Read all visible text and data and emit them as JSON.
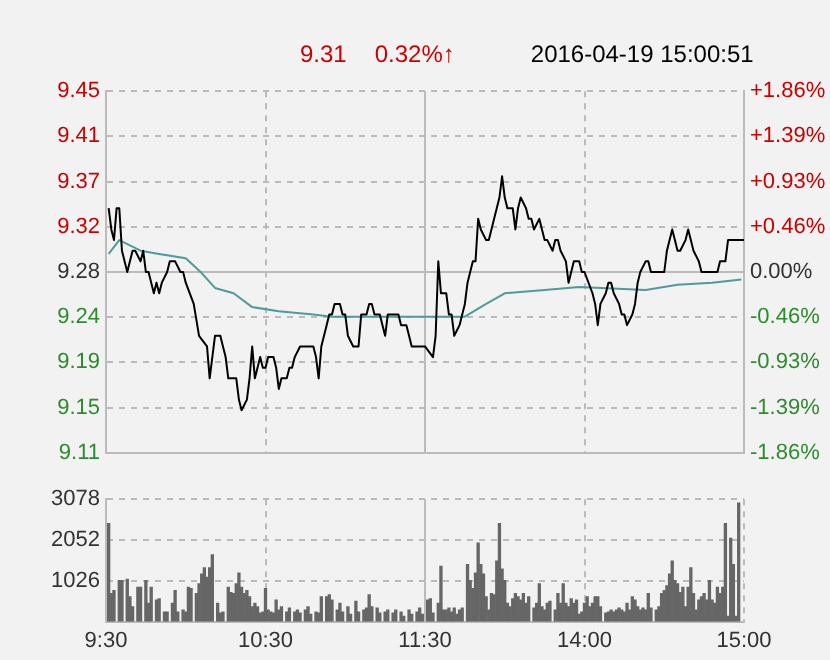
{
  "chart_data": [
    {
      "type": "line",
      "annotations": [
        "9.31",
        "0.32%↑",
        "2016-04-19 15:00:51"
      ],
      "categories": [
        null,
        null,
        null,
        null,
        null,
        null,
        null,
        null,
        null,
        null,
        null,
        null,
        null,
        null,
        null,
        null,
        null,
        null,
        null,
        null,
        null,
        null,
        null,
        null,
        null,
        null,
        null,
        null,
        null,
        null,
        null,
        null,
        null,
        null,
        null,
        null,
        null,
        null,
        null,
        null,
        null,
        null,
        null,
        null,
        null,
        null,
        null,
        null,
        null,
        null,
        null,
        null,
        null,
        null,
        null,
        null,
        null,
        null,
        null,
        null,
        null,
        null,
        null,
        null,
        null,
        null,
        null,
        null,
        null,
        null,
        null,
        null,
        null,
        null,
        null,
        null,
        null,
        null,
        null,
        null,
        null,
        null,
        null,
        null,
        null,
        null,
        null,
        null,
        null,
        null,
        null,
        null,
        null,
        null,
        null,
        null,
        null,
        null,
        null,
        null,
        null,
        null,
        null,
        null,
        null,
        null,
        null,
        null,
        null,
        null,
        null,
        null,
        null,
        null,
        null,
        null,
        null,
        null,
        null,
        null,
        null,
        null,
        null,
        null,
        null,
        null,
        null,
        null,
        null,
        null,
        null,
        null,
        null,
        null,
        null,
        null,
        null,
        null,
        null,
        null,
        null,
        null,
        null,
        null,
        null,
        null,
        null,
        null,
        null,
        null,
        null,
        null,
        null,
        null,
        null,
        null,
        null,
        null,
        null,
        null,
        null,
        null,
        null,
        null,
        null,
        null,
        null,
        null,
        null,
        null,
        null,
        null,
        null,
        null,
        null,
        null,
        null,
        null,
        null,
        null,
        null,
        null,
        null,
        null,
        null,
        null,
        null,
        null,
        null,
        null,
        null,
        null,
        null,
        null,
        null,
        null,
        null,
        null,
        null,
        null,
        null,
        null,
        null,
        null,
        null,
        null,
        null,
        null,
        null,
        null,
        null,
        null,
        null,
        null,
        null,
        null,
        null,
        null,
        null,
        null,
        null,
        null,
        null,
        null,
        null,
        null,
        null,
        null,
        null,
        null,
        null,
        null,
        null,
        null,
        null,
        null,
        null,
        null,
        null,
        null,
        null
      ],
      "ylim": [
        9.11,
        9.45
      ],
      "yticks": [
        {
          "value": 9.11,
          "label": "9.11"
        },
        {
          "value": 9.1525,
          "label": "9.15"
        },
        {
          "value": 9.195,
          "label": "9.19"
        },
        {
          "value": 9.2375,
          "label": "9.24"
        },
        {
          "value": 9.28,
          "label": "9.28"
        },
        {
          "value": 9.3225,
          "label": "9.32"
        },
        {
          "value": 9.365,
          "label": "9.37"
        },
        {
          "value": 9.4075,
          "label": "9.41"
        },
        {
          "value": 9.45,
          "label": "9.45"
        }
      ],
      "y2lim": [
        -1.86,
        1.86
      ],
      "y2ticks": [
        {
          "value": -1.86,
          "label": "-1.86%"
        },
        {
          "value": -1.395,
          "label": "-1.39%"
        },
        {
          "value": -0.93,
          "label": "-0.93%"
        },
        {
          "value": -0.465,
          "label": "-0.46%"
        },
        {
          "value": 0,
          "label": "0.00%"
        },
        {
          "value": 0.465,
          "label": "+0.46%"
        },
        {
          "value": 0.93,
          "label": "+0.93%"
        },
        {
          "value": 1.395,
          "label": "+1.39%"
        },
        {
          "value": 1.86,
          "label": "+1.86%"
        }
      ],
      "tick_labels": "y",
      "grid": true,
      "legend": false,
      "marker": "none",
      "series": [
        {
          "color": "#000000",
          "values": [
            null,
            9.34,
            9.32,
            9.31,
            9.34,
            9.34,
            9.3,
            null,
            9.28,
            9.29,
            9.3,
            9.3,
            null,
            9.29,
            9.3,
            9.28,
            9.28,
            null,
            9.26,
            9.27,
            9.26,
            9.27,
            null,
            9.28,
            9.29,
            9.29,
            9.29,
            null,
            9.28,
            9.28,
            9.27,
            null,
            null,
            9.25,
            null,
            9.22,
            null,
            null,
            9.21,
            9.18,
            9.2,
            9.22,
            null,
            9.22,
            9.21,
            9.2,
            9.18,
            null,
            9.18,
            9.18,
            9.16,
            9.15,
            null,
            9.16,
            9.18,
            9.21,
            9.18,
            9.19,
            9.2,
            9.19,
            9.19,
            9.2,
            null,
            9.2,
            9.19,
            9.17,
            9.18,
            null,
            9.18,
            9.19,
            9.19,
            9.2,
            null,
            9.21,
            9.21,
            9.21,
            9.21,
            null,
            9.21,
            9.2,
            9.18,
            9.21,
            null,
            9.23,
            9.24,
            9.24,
            9.25,
            null,
            9.25,
            9.24,
            9.24,
            9.22,
            null,
            9.21,
            9.21,
            9.21,
            9.24,
            null,
            9.24,
            9.25,
            9.25,
            9.24,
            null,
            9.24,
            9.23,
            9.22,
            9.24,
            null,
            9.24,
            9.24,
            9.24,
            9.23,
            null,
            9.23,
            9.22,
            9.21,
            9.21,
            null,
            9.21,
            null,
            9.21,
            null,
            null,
            9.2,
            9.22,
            9.29,
            9.26,
            null,
            9.26,
            9.24,
            9.24,
            9.22,
            null,
            9.23,
            9.24,
            9.25,
            9.27,
            null,
            9.29,
            9.29,
            9.33,
            9.32,
            null,
            9.31,
            9.31,
            9.32,
            9.33,
            null,
            9.35,
            9.37,
            9.35,
            9.34,
            null,
            9.34,
            9.32,
            9.34,
            9.35,
            null,
            9.34,
            9.33,
            9.33,
            9.32,
            null,
            9.33,
            9.32,
            9.31,
            9.31,
            null,
            9.3,
            9.31,
            9.31,
            9.3,
            null,
            9.29,
            9.27,
            9.28,
            9.29,
            null,
            9.29,
            9.28,
            9.28,
            null,
            null,
            9.26,
            9.25,
            9.23,
            9.25,
            null,
            9.26,
            9.27,
            9.27,
            9.26,
            null,
            9.25,
            9.24,
            9.24,
            9.23,
            null,
            9.24,
            9.25,
            9.27,
            9.28,
            null,
            9.29,
            9.29,
            9.28,
            null,
            null,
            null,
            null,
            9.28,
            9.3,
            null,
            9.32,
            9.31,
            9.3,
            9.3,
            null,
            9.31,
            9.32,
            9.31,
            9.3,
            null,
            9.29,
            9.28,
            null,
            null,
            null,
            null,
            null,
            9.28,
            9.29,
            null,
            9.29,
            9.31,
            null,
            null,
            null,
            9.31,
            null,
            9.31
          ]
        },
        {
          "color": "#4f9a9a",
          "values": [
            null,
            9.297,
            null,
            null,
            null,
            9.31,
            null,
            null,
            null,
            null,
            null,
            null,
            null,
            9.3,
            null,
            null,
            null,
            null,
            null,
            null,
            9.297,
            null,
            null,
            null,
            null,
            null,
            null,
            null,
            null,
            null,
            9.293,
            null,
            null,
            null,
            null,
            null,
            9.279,
            null,
            null,
            null,
            null,
            9.265,
            null,
            null,
            null,
            null,
            null,
            null,
            9.26,
            null,
            null,
            null,
            null,
            null,
            null,
            9.247,
            null,
            null,
            null,
            null,
            null,
            null,
            null,
            null,
            null,
            9.243,
            null,
            null,
            null,
            null,
            null,
            null,
            null,
            null,
            null,
            null,
            null,
            null,
            9.24,
            null,
            null,
            null,
            null,
            null,
            null,
            9.238,
            null,
            null,
            null,
            null,
            null,
            null,
            null,
            null,
            null,
            null,
            null,
            null,
            null,
            null,
            null,
            null,
            null,
            null,
            null,
            null,
            null,
            null,
            null,
            null,
            null,
            null,
            null,
            null,
            null,
            null,
            null,
            null,
            9.238,
            null,
            null,
            null,
            null,
            null,
            null,
            null,
            null,
            null,
            null,
            null,
            null,
            null,
            null,
            null,
            null,
            9.238,
            null,
            null,
            null,
            null,
            null,
            null,
            null,
            9.25,
            null,
            null,
            null,
            null,
            null,
            null,
            9.26,
            null,
            null,
            null,
            null,
            null,
            null,
            null,
            null,
            null,
            null,
            null,
            null,
            null,
            null,
            9.263,
            null,
            null,
            null,
            null,
            null,
            null,
            null,
            null,
            null,
            null,
            null,
            null,
            9.266,
            null,
            null,
            null,
            null,
            null,
            null,
            null,
            null,
            null,
            null,
            null,
            null,
            null,
            null,
            null,
            null,
            null,
            null,
            null,
            null,
            null,
            null,
            null,
            null,
            9.263,
            null,
            null,
            null,
            null,
            null,
            null,
            null,
            null,
            null,
            null,
            null,
            9.268,
            null,
            null,
            null,
            null,
            null,
            null,
            null,
            null,
            null,
            null,
            null,
            null,
            9.27,
            null,
            null,
            null,
            null,
            null,
            null,
            null,
            null,
            null,
            null,
            9.273,
            null
          ]
        }
      ]
    },
    {
      "type": "bar",
      "categories": [
        "9:30",
        null,
        null,
        null,
        null,
        null,
        null,
        null,
        null,
        null,
        null,
        null,
        null,
        null,
        null,
        null,
        null,
        null,
        null,
        null,
        null,
        null,
        null,
        null,
        null,
        null,
        null,
        null,
        null,
        null,
        null,
        null,
        null,
        null,
        null,
        null,
        null,
        null,
        null,
        null,
        null,
        null,
        null,
        null,
        null,
        null,
        null,
        null,
        null,
        null,
        null,
        null,
        null,
        null,
        null,
        null,
        null,
        null,
        null,
        null,
        "10:30",
        null,
        null,
        null,
        null,
        null,
        null,
        null,
        null,
        null,
        null,
        null,
        null,
        null,
        null,
        null,
        null,
        null,
        null,
        null,
        null,
        null,
        null,
        null,
        null,
        null,
        null,
        null,
        null,
        null,
        null,
        null,
        null,
        null,
        null,
        null,
        null,
        null,
        null,
        null,
        null,
        null,
        null,
        null,
        null,
        null,
        null,
        null,
        null,
        null,
        null,
        null,
        null,
        null,
        null,
        null,
        null,
        null,
        null,
        null,
        "11:30",
        null,
        null,
        null,
        null,
        null,
        null,
        null,
        null,
        null,
        null,
        null,
        null,
        null,
        null,
        null,
        null,
        null,
        null,
        null,
        null,
        null,
        null,
        null,
        null,
        null,
        null,
        null,
        null,
        null,
        null,
        null,
        null,
        null,
        null,
        null,
        null,
        null,
        null,
        null,
        null,
        null,
        null,
        null,
        null,
        null,
        null,
        null,
        null,
        null,
        null,
        null,
        null,
        null,
        null,
        null,
        null,
        null,
        null,
        null,
        "14:00",
        null,
        null,
        null,
        null,
        null,
        null,
        null,
        null,
        null,
        null,
        null,
        null,
        null,
        null,
        null,
        null,
        null,
        null,
        null,
        null,
        null,
        null,
        null,
        null,
        null,
        null,
        null,
        null,
        null,
        null,
        null,
        null,
        null,
        null,
        null,
        null,
        null,
        null,
        null,
        null,
        null,
        null,
        null,
        null,
        null,
        null,
        null,
        null,
        null,
        null,
        null,
        null,
        null,
        null,
        null,
        null,
        null,
        null,
        null,
        "15:00"
      ],
      "ylim": [
        0,
        3078
      ],
      "yticks": [
        1026,
        2052,
        3078
      ],
      "grid": true,
      "legend": false,
      "series": [
        {
          "color": "#666666",
          "values": [
            null,
            2460,
            700,
            780,
            null,
            1030,
            1030,
            null,
            1060,
            620,
            370,
            null,
            860,
            860,
            null,
            1030,
            460,
            860,
            null,
            540,
            570,
            null,
            240,
            240,
            null,
            460,
            780,
            240,
            null,
            290,
            240,
            860,
            830,
            null,
            700,
            950,
            1190,
            1350,
            1110,
            1350,
            1680,
            null,
            460,
            210,
            240,
            null,
            860,
            730,
            700,
            950,
            1220,
            860,
            700,
            780,
            620,
            370,
            460,
            370,
            210,
            240,
            830,
            290,
            240,
            210,
            540,
            290,
            370,
            null,
            240,
            340,
            null,
            240,
            290,
            210,
            null,
            290,
            370,
            180,
            null,
            240,
            210,
            620,
            null,
            620,
            670,
            540,
            null,
            290,
            460,
            240,
            null,
            370,
            180,
            null,
            510,
            240,
            null,
            290,
            340,
            670,
            370,
            null,
            340,
            210,
            null,
            240,
            290,
            null,
            210,
            290,
            null,
            240,
            130,
            null,
            290,
            180,
            null,
            240,
            340,
            180,
            null,
            540,
            570,
            210,
            null,
            460,
            1390,
            290,
            290,
            340,
            240,
            340,
            180,
            290,
            340,
            null,
            1430,
            1030,
            830,
            1220,
            1970,
            1430,
            1190,
            620,
            290,
            700,
            670,
            1520,
            2460,
            1320,
            1030,
            460,
            370,
            570,
            700,
            620,
            540,
            700,
            460,
            620,
            null,
            340,
            460,
            950,
            370,
            290,
            460,
            510,
            null,
            290,
            700,
            460,
            950,
            460,
            370,
            570,
            460,
            540,
            180,
            240,
            460,
            620,
            370,
            460,
            620,
            620,
            370,
            null,
            210,
            240,
            290,
            240,
            290,
            340,
            290,
            240,
            460,
            290,
            620,
            540,
            370,
            290,
            340,
            290,
            700,
            340,
            null,
            290,
            370,
            700,
            780,
            900,
            1190,
            1520,
            1030,
            950,
            730,
            860,
            370,
            860,
            1350,
            700,
            290,
            540,
            620,
            700,
            540,
            1030,
            540,
            460,
            860,
            700,
            860,
            2460,
            130,
            2090,
            1430,
            130,
            2980,
            null,
            null
          ]
        }
      ]
    }
  ]
}
